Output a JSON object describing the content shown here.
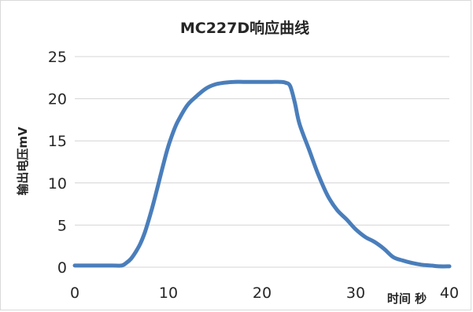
{
  "chart_data": {
    "type": "line",
    "title": "MC227D响应曲线",
    "xlabel": "时间 秒",
    "ylabel": "输出电压mV",
    "xlim": [
      0,
      40
    ],
    "ylim": [
      0,
      25
    ],
    "x_ticks": [
      "0",
      "10",
      "20",
      "30",
      "40"
    ],
    "y_ticks": [
      "0",
      "5",
      "10",
      "15",
      "20",
      "25"
    ],
    "grid": "horizontal",
    "legend": "none",
    "series": [
      {
        "color": "#4a7ebb",
        "x": [
          0,
          2,
          4,
          5,
          5.5,
          6,
          6.5,
          7,
          7.5,
          8,
          8.5,
          9,
          9.5,
          10,
          10.5,
          11,
          12,
          13,
          14,
          15,
          16,
          17,
          18,
          19,
          20,
          21,
          22,
          22.5,
          23,
          23.5,
          24,
          25,
          26,
          27,
          28,
          29,
          30,
          31,
          32,
          33,
          34,
          35,
          36,
          37,
          38,
          39,
          40
        ],
        "y": [
          0.2,
          0.2,
          0.2,
          0.2,
          0.5,
          1.0,
          1.8,
          2.8,
          4.2,
          6.0,
          8.0,
          10.2,
          12.4,
          14.4,
          16.0,
          17.3,
          19.2,
          20.3,
          21.2,
          21.7,
          21.9,
          22.0,
          22.0,
          22.0,
          22.0,
          22.0,
          22.0,
          21.9,
          21.5,
          19.5,
          17.0,
          14.0,
          11.0,
          8.5,
          6.8,
          5.7,
          4.5,
          3.6,
          3.0,
          2.2,
          1.2,
          0.8,
          0.5,
          0.3,
          0.2,
          0.1,
          0.1
        ]
      }
    ]
  }
}
